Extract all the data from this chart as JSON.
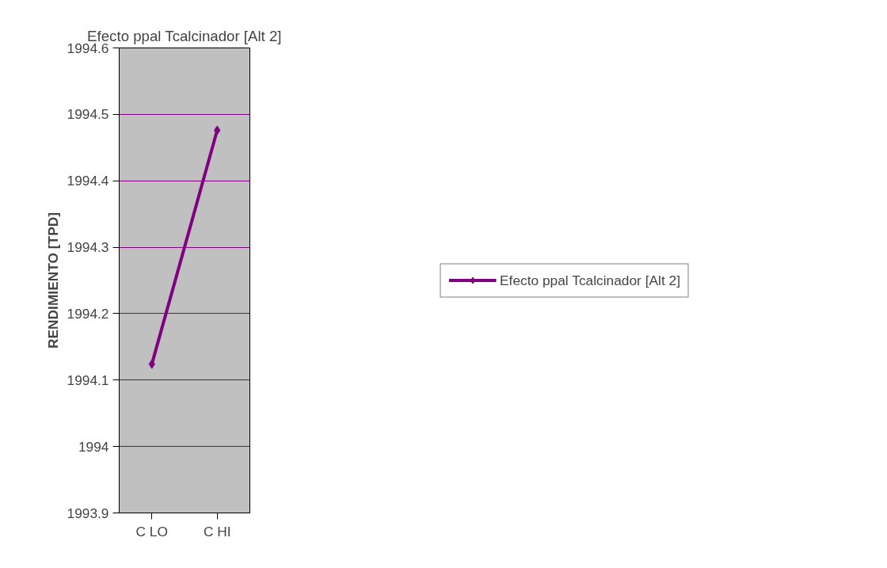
{
  "chart_data": {
    "type": "line",
    "title": "Efecto ppal Tcalcinador [Alt 2]",
    "ylabel": "RENDIMIENTO [TPD]",
    "categories": [
      "C LO",
      "C HI"
    ],
    "series": [
      {
        "name": "Efecto ppal Tcalcinador [Alt 2]",
        "color": "#800080",
        "values": [
          1994.124,
          1994.476
        ]
      }
    ],
    "ylim": [
      1993.9,
      1994.6
    ],
    "yticks": [
      1993.9,
      1994,
      1994.1,
      1994.2,
      1994.3,
      1994.4,
      1994.5,
      1994.6
    ],
    "grid": "y",
    "legend": "right",
    "marker": "diamond",
    "line_style": "solid"
  }
}
